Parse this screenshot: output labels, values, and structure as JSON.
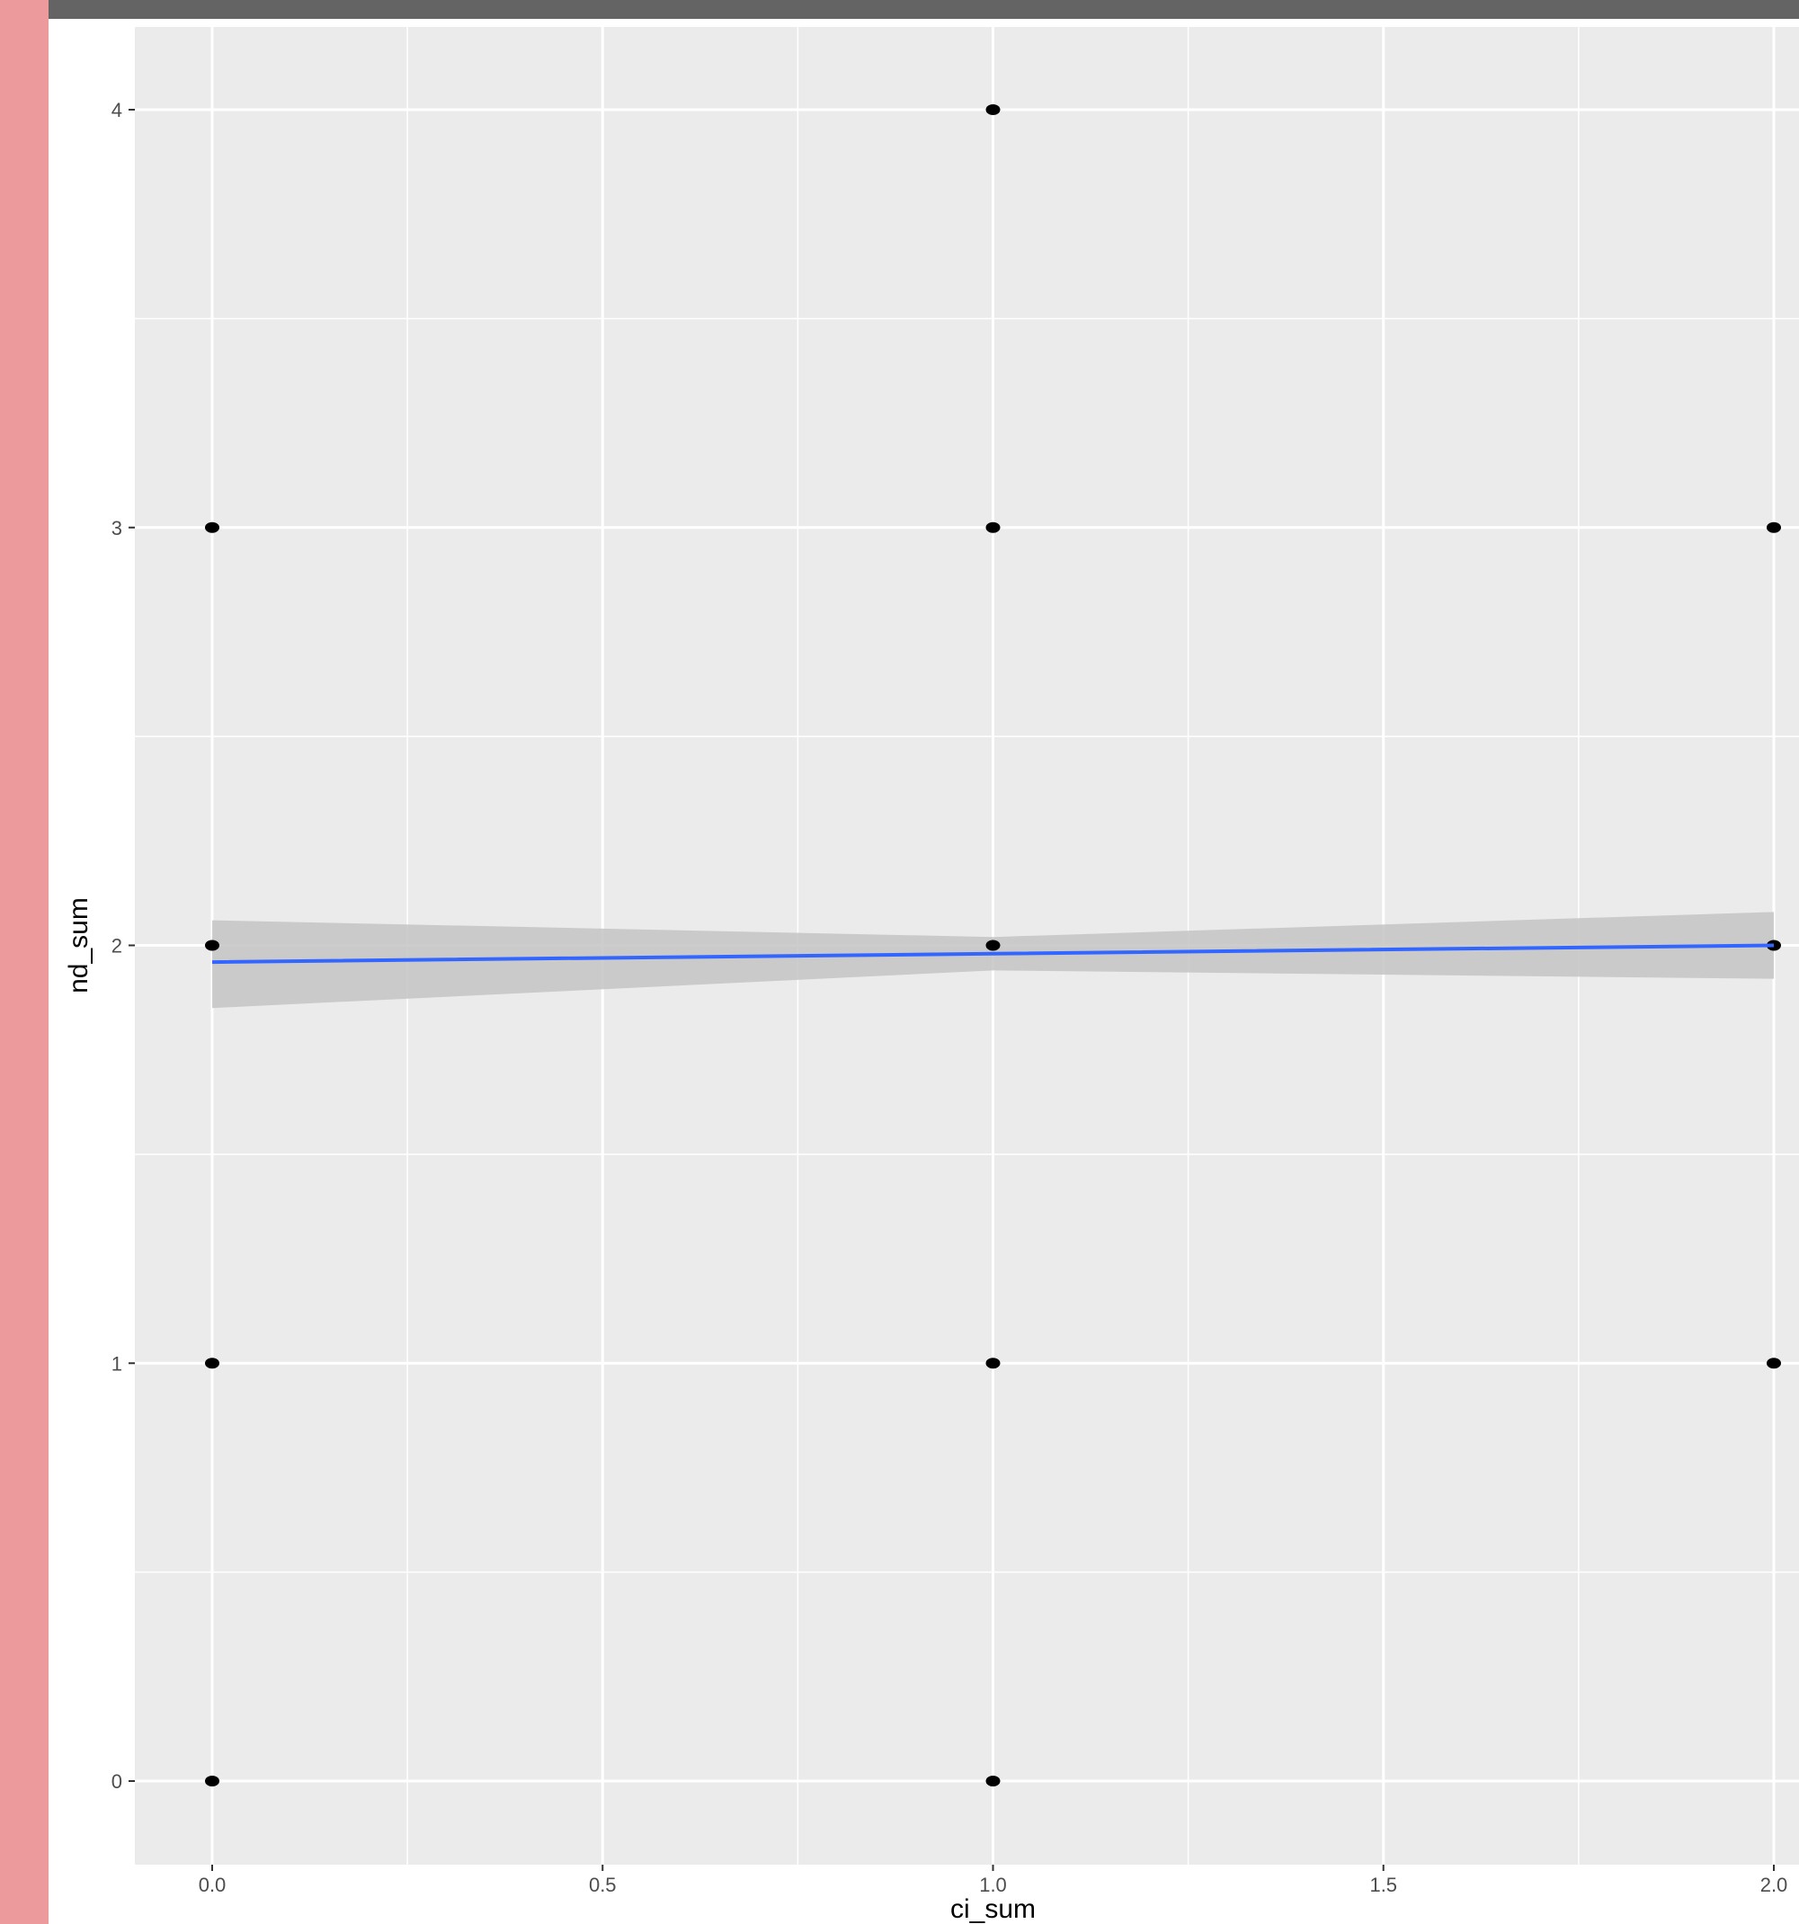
{
  "colors": {
    "side_strip": "#ec9a9b",
    "top_bar": "#646464",
    "panel_background": "#ebebeb",
    "gridline": "#ffffff",
    "point": "#000000",
    "smooth_line": "#3366ff",
    "confidence_band": "#c4c4c4"
  },
  "chart_data": {
    "type": "scatter",
    "xlabel": "ci_sum",
    "ylabel": "nd_sum",
    "xlim": [
      -0.1,
      2.05
    ],
    "ylim": [
      -0.2,
      4.2
    ],
    "x_ticks": [
      {
        "value": 0.0,
        "label": "0.0"
      },
      {
        "value": 0.5,
        "label": "0.5"
      },
      {
        "value": 1.0,
        "label": "1.0"
      },
      {
        "value": 1.5,
        "label": "1.5"
      },
      {
        "value": 2.0,
        "label": "2.0"
      }
    ],
    "y_ticks": [
      {
        "value": 0,
        "label": "0"
      },
      {
        "value": 1,
        "label": "1"
      },
      {
        "value": 2,
        "label": "2"
      },
      {
        "value": 3,
        "label": "3"
      },
      {
        "value": 4,
        "label": "4"
      }
    ],
    "grid": true,
    "points": [
      {
        "x": 0,
        "y": 0
      },
      {
        "x": 0,
        "y": 1
      },
      {
        "x": 0,
        "y": 2
      },
      {
        "x": 0,
        "y": 3
      },
      {
        "x": 1,
        "y": 0
      },
      {
        "x": 1,
        "y": 1
      },
      {
        "x": 1,
        "y": 2
      },
      {
        "x": 1,
        "y": 3
      },
      {
        "x": 1,
        "y": 4
      },
      {
        "x": 2,
        "y": 1
      },
      {
        "x": 2,
        "y": 2
      },
      {
        "x": 2,
        "y": 3
      }
    ],
    "smooth": {
      "method": "linear",
      "x": [
        0,
        1,
        2
      ],
      "y": [
        1.96,
        1.98,
        2.0
      ],
      "ci_lower": [
        1.85,
        1.94,
        1.92
      ],
      "ci_upper": [
        2.06,
        2.02,
        2.08
      ]
    }
  }
}
